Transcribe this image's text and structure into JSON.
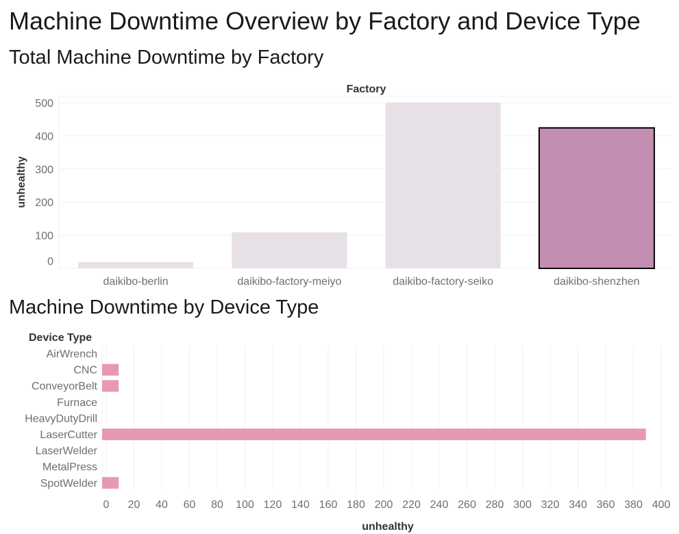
{
  "title": "Machine Downtime Overview by Factory and Device Type",
  "colors": {
    "bar_default": "#e8e0e7",
    "bar_selected": "#c48eb2",
    "bar_selected_outline": "#000000",
    "bar_device": "#e799b2",
    "grid": "#f0f0f0"
  },
  "chart_data": [
    {
      "type": "bar",
      "orientation": "vertical",
      "title": "Total Machine Downtime by Factory",
      "column_header": "Factory",
      "xlabel": "",
      "ylabel": "unhealthy",
      "categories": [
        "daikibo-berlin",
        "daikibo-factory-meiyo",
        "daikibo-factory-seiko",
        "daikibo-shenzhen"
      ],
      "values": [
        19,
        109,
        500,
        424
      ],
      "selected": "daikibo-shenzhen",
      "ylim": [
        0,
        500
      ],
      "yticks": [
        0,
        100,
        200,
        300,
        400,
        500
      ],
      "grid": true
    },
    {
      "type": "bar",
      "orientation": "horizontal",
      "title": "Machine Downtime by Device Type",
      "row_header": "Device Type",
      "xlabel": "unhealthy",
      "ylabel": "",
      "categories": [
        "AirWrench",
        "CNC",
        "ConveyorBelt",
        "Furnace",
        "HeavyDutyDrill",
        "LaserCutter",
        "LaserWelder",
        "MetalPress",
        "SpotWelder"
      ],
      "values": [
        0,
        9,
        9,
        0,
        0,
        389,
        0,
        0,
        9
      ],
      "xlim": [
        0,
        400
      ],
      "xticks": [
        0,
        20,
        40,
        60,
        80,
        100,
        120,
        140,
        160,
        180,
        200,
        220,
        240,
        260,
        280,
        300,
        320,
        340,
        360,
        380,
        400
      ],
      "grid": true
    }
  ]
}
